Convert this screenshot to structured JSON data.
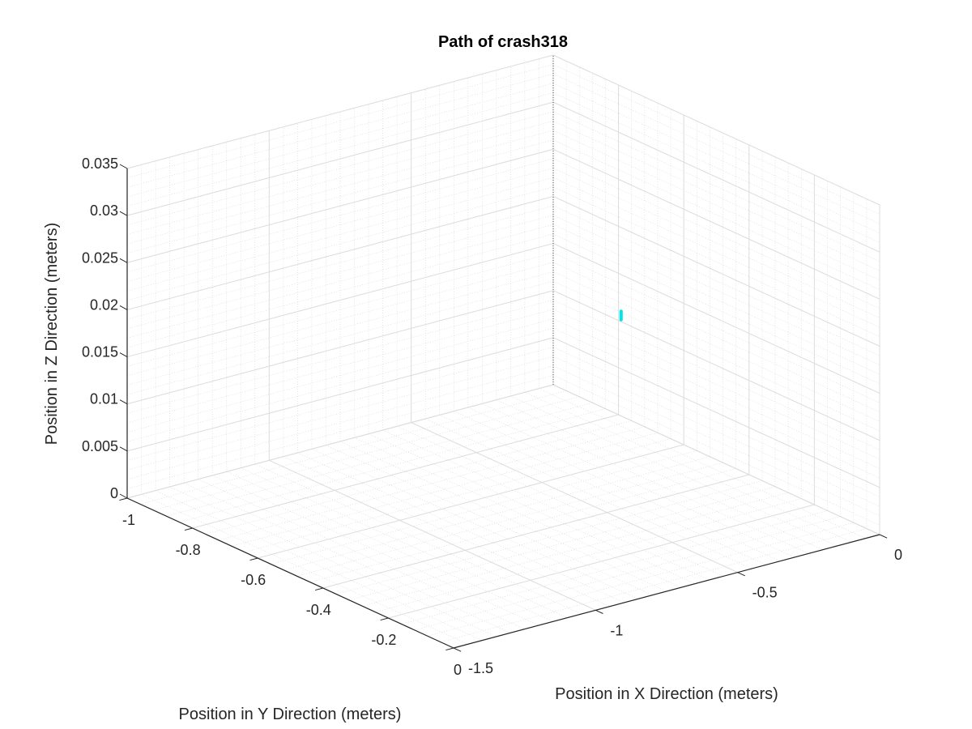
{
  "chart_data": {
    "type": "line",
    "title": "Path of crash318",
    "xlabel": "Position in X Direction (meters)",
    "ylabel": "Position in Y Direction (meters)",
    "zlabel": "Position in Z Direction (meters)",
    "xlim": [
      -1,
      0
    ],
    "ylim": [
      -1.5,
      0
    ],
    "zlim": [
      0,
      0.035
    ],
    "x_ticks": [
      -1,
      -0.8,
      -0.6,
      -0.4,
      -0.2,
      0
    ],
    "x_tick_labels": [
      "-1",
      "-0.8",
      "-0.6",
      "-0.4",
      "-0.2",
      "0"
    ],
    "y_ticks": [
      -1.5,
      -1,
      -0.5,
      0
    ],
    "y_tick_labels": [
      "-1.5",
      "-1",
      "-0.5",
      "0"
    ],
    "z_ticks": [
      0,
      0.005,
      0.01,
      0.015,
      0.02,
      0.025,
      0.03,
      0.035
    ],
    "z_tick_labels": [
      "0",
      "0.005",
      "0.01",
      "0.015",
      "0.02",
      "0.025",
      "0.03",
      "0.035"
    ],
    "grid": true,
    "minor_grid": true,
    "series": [
      {
        "color": "#00e5e5",
        "points": [
          {
            "x": -0.47,
            "y": -0.37,
            "z": 0.0183
          },
          {
            "x": -0.47,
            "y": -0.37,
            "z": 0.0192
          }
        ]
      }
    ]
  }
}
